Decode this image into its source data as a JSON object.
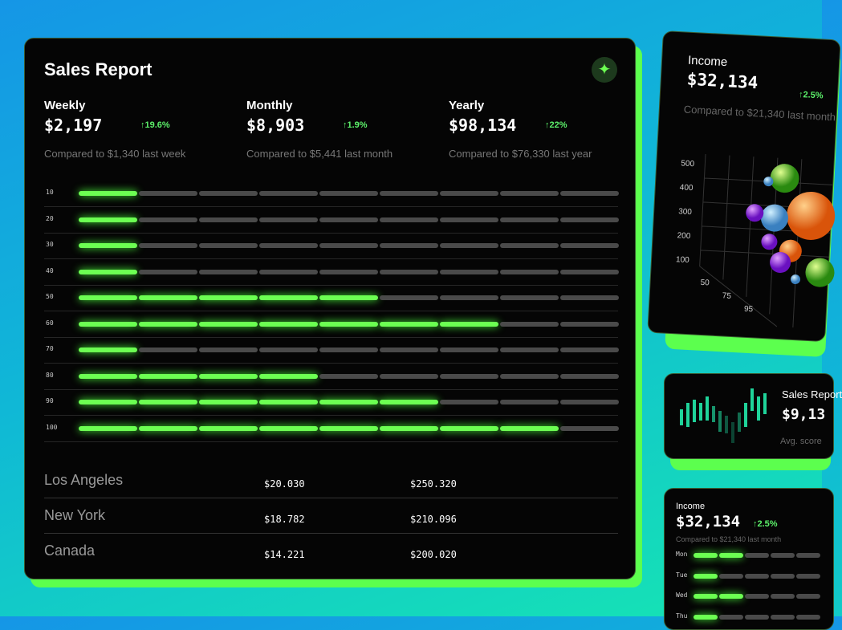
{
  "main": {
    "title": "Sales Report",
    "stats": [
      {
        "label": "Weekly",
        "value": "$2,197",
        "change": "↑19.6%",
        "compare": "Compared to $1,340 last week"
      },
      {
        "label": "Monthly",
        "value": "$8,903",
        "change": "↑1.9%",
        "compare": "Compared to $5,441 last month"
      },
      {
        "label": "Yearly",
        "value": "$98,134",
        "change": "↑22%",
        "compare": "Compared to $76,330 last year"
      }
    ],
    "segments": 9,
    "rows": [
      {
        "label": "10",
        "filled": 1
      },
      {
        "label": "20",
        "filled": 1
      },
      {
        "label": "30",
        "filled": 1
      },
      {
        "label": "40",
        "filled": 1
      },
      {
        "label": "50",
        "filled": 5
      },
      {
        "label": "60",
        "filled": 7
      },
      {
        "label": "70",
        "filled": 1
      },
      {
        "label": "80",
        "filled": 4
      },
      {
        "label": "90",
        "filled": 6
      },
      {
        "label": "100",
        "filled": 8
      }
    ],
    "table": [
      [
        "Los Angeles",
        "$20.030",
        "$250.320"
      ],
      [
        "New York",
        "$18.782",
        "$210.096"
      ],
      [
        "Canada",
        "$14.221",
        "$200.020"
      ]
    ]
  },
  "income_card": {
    "title": "Income",
    "value": "$32,134",
    "change": "↑2.5%",
    "compare": "Compared to $21,340 last month",
    "y_labels": [
      "500",
      "400",
      "300",
      "200",
      "100"
    ],
    "x_labels": [
      "50",
      "75",
      "95"
    ]
  },
  "sales_card": {
    "title": "Sales Report",
    "value": "$9,13",
    "note": "Avg. score"
  },
  "income_small": {
    "title": "Income",
    "value": "$32,134",
    "change": "↑2.5%",
    "compare": "Compared to $21,340 last month",
    "segments": 5,
    "rows": [
      {
        "label": "Mon",
        "filled": 2
      },
      {
        "label": "Tue",
        "filled": 1
      },
      {
        "label": "Wed",
        "filled": 2
      },
      {
        "label": "Thu",
        "filled": 1
      }
    ]
  }
}
